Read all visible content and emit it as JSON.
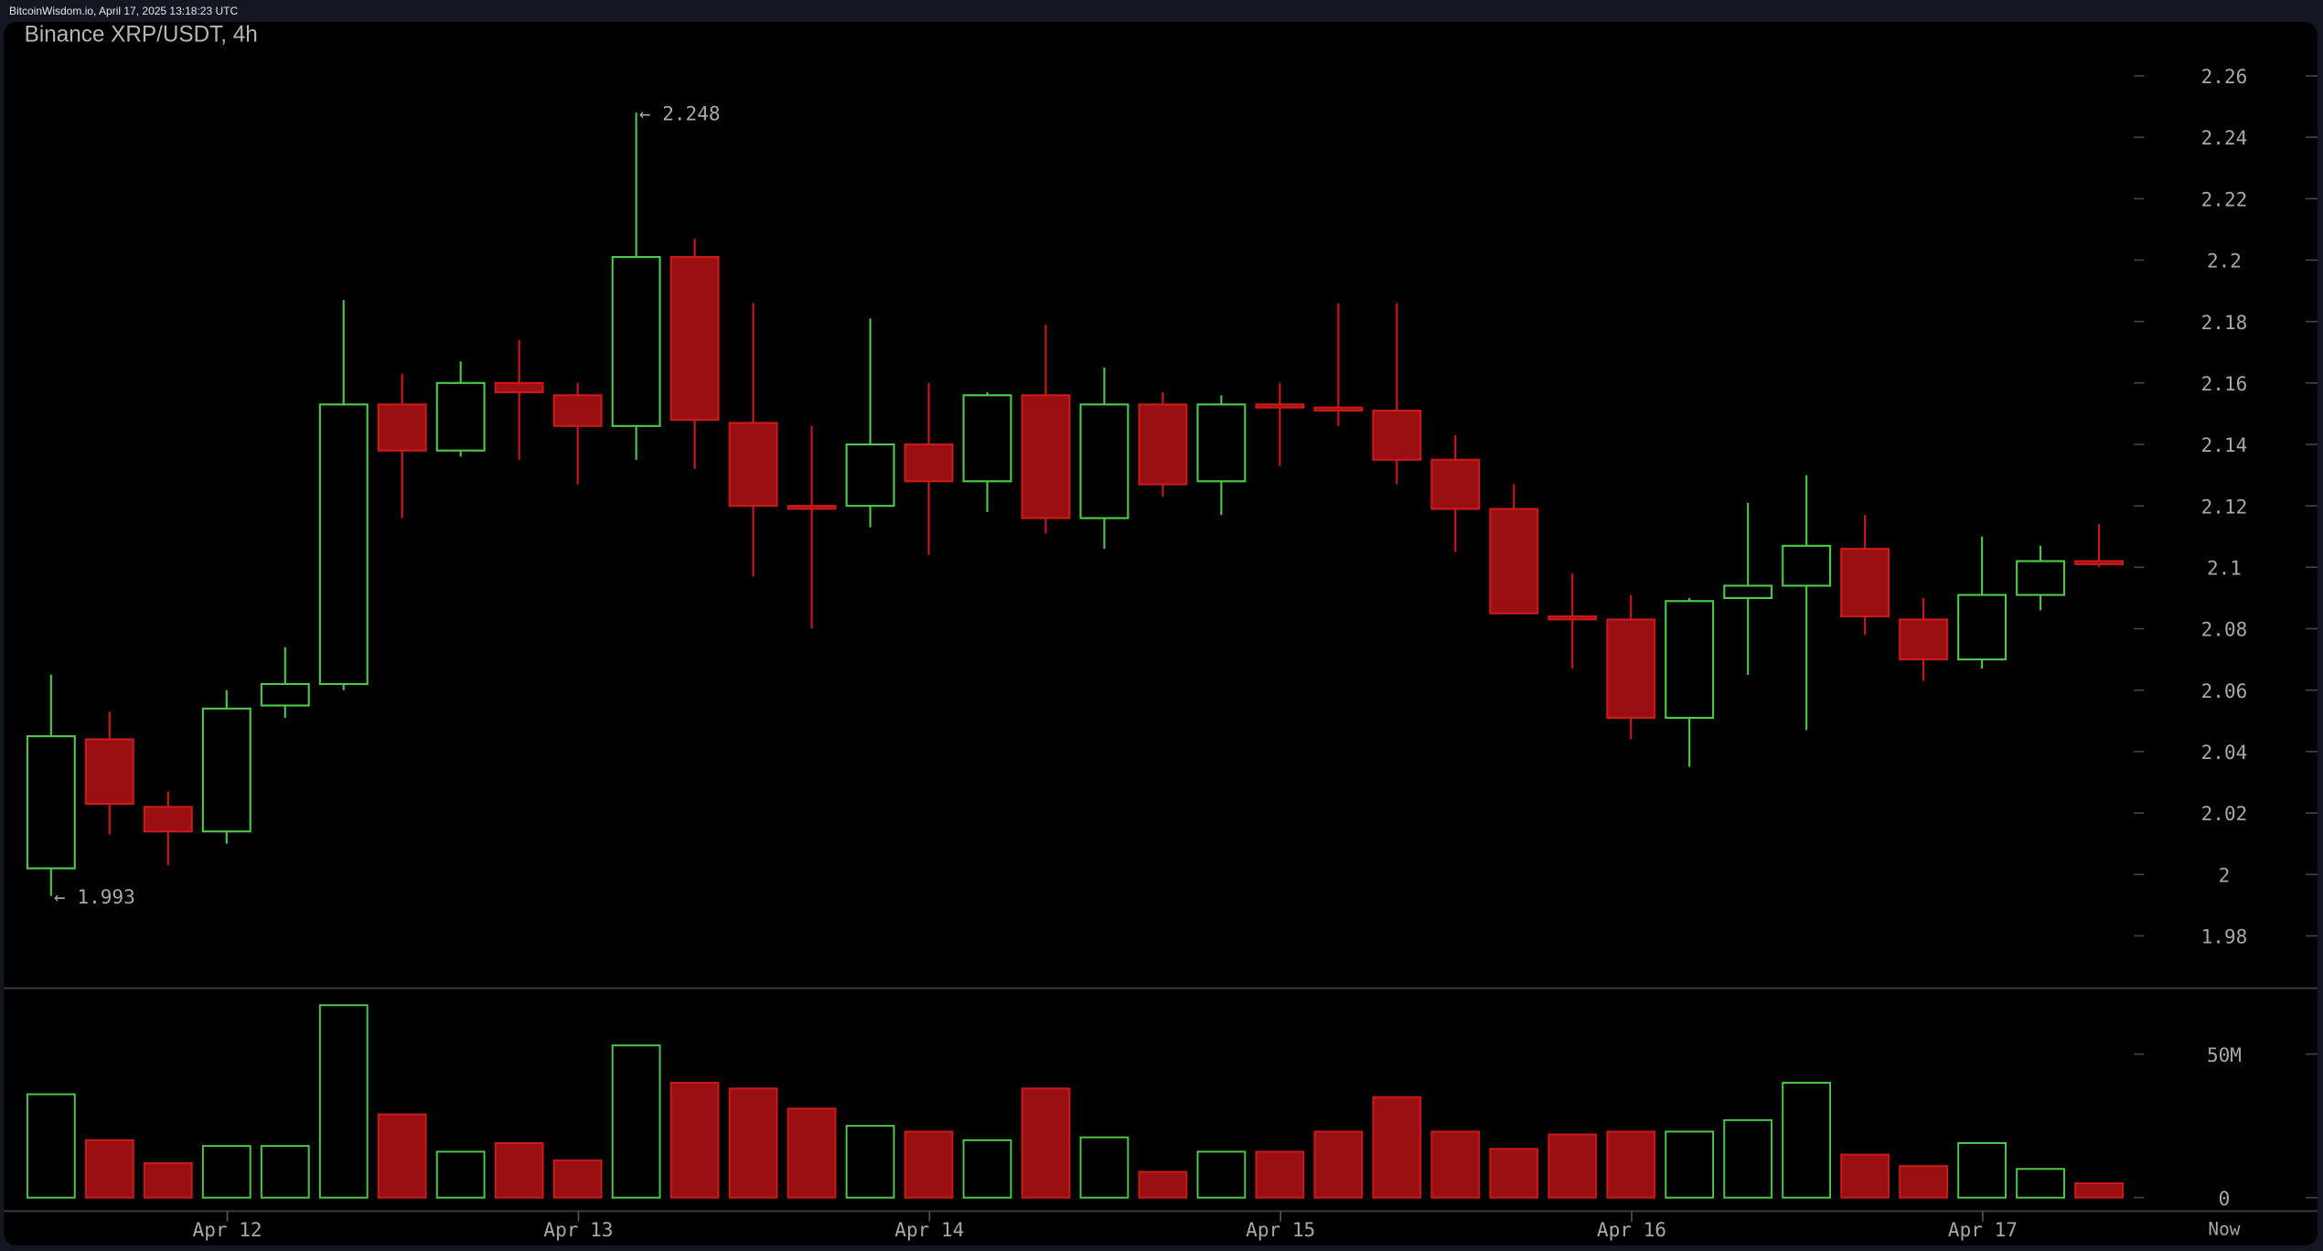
{
  "header": {
    "source_line": "BitcoinWisdom.io, April 17, 2025 13:18:23 UTC"
  },
  "chart": {
    "title": "Binance XRP/USDT, 4h",
    "max_label": "← 2.248",
    "min_label": "← 1.993",
    "now_label": "Now"
  },
  "colors": {
    "up": "#4ec94e",
    "down": "#cc1a1a",
    "down_fill": "#9a1012",
    "background": "#000000",
    "axis_text": "#a8a8a8"
  },
  "chart_data": {
    "type": "candlestick",
    "title": "Binance XRP/USDT, 4h",
    "xlabel": "",
    "ylabel": "",
    "price_ticks": [
      2.26,
      2.24,
      2.22,
      2.2,
      2.18,
      2.16,
      2.14,
      2.12,
      2.1,
      2.08,
      2.06,
      2.04,
      2.02,
      2,
      1.98
    ],
    "ylim": [
      1.975,
      2.265
    ],
    "x_ticks": [
      {
        "label": "Apr 12",
        "index": 3
      },
      {
        "label": "Apr 13",
        "index": 9
      },
      {
        "label": "Apr 14",
        "index": 15
      },
      {
        "label": "Apr 15",
        "index": 21
      },
      {
        "label": "Apr 16",
        "index": 27
      },
      {
        "label": "Apr 17",
        "index": 33
      }
    ],
    "volume_ticks": [
      "50M",
      "0"
    ],
    "volume_unit": "M",
    "annotations": [
      {
        "text": "← 2.248",
        "type": "high"
      },
      {
        "text": "← 1.993",
        "type": "low"
      }
    ],
    "candles": [
      {
        "o": 2.002,
        "h": 2.065,
        "l": 1.993,
        "c": 2.045,
        "v": 36
      },
      {
        "o": 2.044,
        "h": 2.053,
        "l": 2.013,
        "c": 2.023,
        "v": 20
      },
      {
        "o": 2.022,
        "h": 2.027,
        "l": 2.003,
        "c": 2.014,
        "v": 12
      },
      {
        "o": 2.014,
        "h": 2.06,
        "l": 2.01,
        "c": 2.054,
        "v": 18
      },
      {
        "o": 2.055,
        "h": 2.074,
        "l": 2.051,
        "c": 2.062,
        "v": 18
      },
      {
        "o": 2.062,
        "h": 2.187,
        "l": 2.06,
        "c": 2.153,
        "v": 67
      },
      {
        "o": 2.153,
        "h": 2.163,
        "l": 2.116,
        "c": 2.138,
        "v": 29
      },
      {
        "o": 2.138,
        "h": 2.167,
        "l": 2.136,
        "c": 2.16,
        "v": 16
      },
      {
        "o": 2.16,
        "h": 2.174,
        "l": 2.135,
        "c": 2.157,
        "v": 19
      },
      {
        "o": 2.156,
        "h": 2.16,
        "l": 2.127,
        "c": 2.146,
        "v": 13
      },
      {
        "o": 2.146,
        "h": 2.248,
        "l": 2.135,
        "c": 2.201,
        "v": 53
      },
      {
        "o": 2.201,
        "h": 2.207,
        "l": 2.132,
        "c": 2.148,
        "v": 40
      },
      {
        "o": 2.147,
        "h": 2.186,
        "l": 2.097,
        "c": 2.12,
        "v": 38
      },
      {
        "o": 2.12,
        "h": 2.146,
        "l": 2.08,
        "c": 2.1195,
        "v": 31
      },
      {
        "o": 2.12,
        "h": 2.181,
        "l": 2.113,
        "c": 2.14,
        "v": 25
      },
      {
        "o": 2.14,
        "h": 2.16,
        "l": 2.104,
        "c": 2.128,
        "v": 23
      },
      {
        "o": 2.128,
        "h": 2.157,
        "l": 2.118,
        "c": 2.156,
        "v": 20
      },
      {
        "o": 2.156,
        "h": 2.179,
        "l": 2.111,
        "c": 2.116,
        "v": 38
      },
      {
        "o": 2.116,
        "h": 2.165,
        "l": 2.106,
        "c": 2.153,
        "v": 21
      },
      {
        "o": 2.153,
        "h": 2.157,
        "l": 2.123,
        "c": 2.127,
        "v": 9
      },
      {
        "o": 2.128,
        "h": 2.156,
        "l": 2.117,
        "c": 2.153,
        "v": 16
      },
      {
        "o": 2.153,
        "h": 2.16,
        "l": 2.133,
        "c": 2.152,
        "v": 16
      },
      {
        "o": 2.152,
        "h": 2.186,
        "l": 2.146,
        "c": 2.1515,
        "v": 23
      },
      {
        "o": 2.151,
        "h": 2.186,
        "l": 2.127,
        "c": 2.135,
        "v": 35
      },
      {
        "o": 2.135,
        "h": 2.143,
        "l": 2.105,
        "c": 2.119,
        "v": 23
      },
      {
        "o": 2.119,
        "h": 2.127,
        "l": 2.085,
        "c": 2.085,
        "v": 17
      },
      {
        "o": 2.084,
        "h": 2.098,
        "l": 2.067,
        "c": 2.0835,
        "v": 22
      },
      {
        "o": 2.083,
        "h": 2.091,
        "l": 2.044,
        "c": 2.051,
        "v": 23
      },
      {
        "o": 2.051,
        "h": 2.09,
        "l": 2.035,
        "c": 2.089,
        "v": 23
      },
      {
        "o": 2.09,
        "h": 2.121,
        "l": 2.065,
        "c": 2.094,
        "v": 27
      },
      {
        "o": 2.094,
        "h": 2.13,
        "l": 2.047,
        "c": 2.107,
        "v": 40
      },
      {
        "o": 2.106,
        "h": 2.117,
        "l": 2.078,
        "c": 2.084,
        "v": 15
      },
      {
        "o": 2.083,
        "h": 2.09,
        "l": 2.063,
        "c": 2.07,
        "v": 11
      },
      {
        "o": 2.07,
        "h": 2.11,
        "l": 2.067,
        "c": 2.091,
        "v": 19
      },
      {
        "o": 2.091,
        "h": 2.107,
        "l": 2.086,
        "c": 2.102,
        "v": 10
      },
      {
        "o": 2.102,
        "h": 2.114,
        "l": 2.1,
        "c": 2.101,
        "v": 5
      }
    ]
  }
}
